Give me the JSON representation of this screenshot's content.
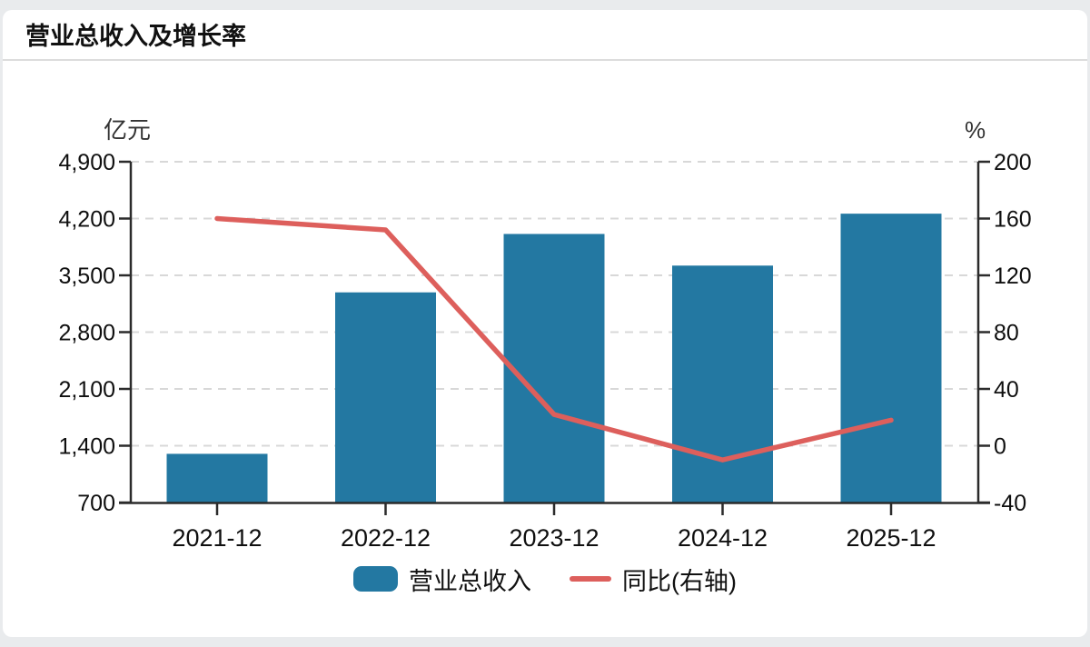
{
  "page": {
    "title": "营业总收入及增长率"
  },
  "axes": {
    "left_unit": "亿元",
    "right_unit": "%",
    "left_ticks": [
      "4,900",
      "4,200",
      "3,500",
      "2,800",
      "2,100",
      "1,400",
      "700"
    ],
    "right_ticks": [
      "200",
      "160",
      "120",
      "80",
      "40",
      "0",
      "-40"
    ]
  },
  "legend": {
    "items": [
      {
        "label": "营业总收入",
        "type": "bar",
        "color": "#2378a2"
      },
      {
        "label": "同比(右轴)",
        "type": "line",
        "color": "#dd5f5c"
      }
    ]
  },
  "colors": {
    "bar": "#2378a2",
    "line": "#dd5f5c",
    "grid": "#d8d8d8",
    "axis": "#2b2b2b",
    "text": "#0f0f0f",
    "page_background": "#e9ebed",
    "card_background": "#ffffff"
  },
  "chart_data": {
    "type": "bar",
    "subtype": "dual-axis bar+line combo",
    "title": "营业总收入及增长率",
    "categories": [
      "2021-12",
      "2022-12",
      "2023-12",
      "2024-12",
      "2025-12"
    ],
    "series": [
      {
        "name": "营业总收入",
        "type": "bar",
        "axis": "left",
        "unit": "亿元",
        "color": "#2378a2",
        "values": [
          1300,
          3290,
          4010,
          3620,
          4260
        ]
      },
      {
        "name": "同比(右轴)",
        "type": "line",
        "axis": "right",
        "unit": "%",
        "color": "#dd5f5c",
        "values": [
          160,
          152,
          22,
          -10,
          18
        ]
      }
    ],
    "left_axis": {
      "label": "亿元",
      "min": 700,
      "max": 4900,
      "tick_step": 700
    },
    "right_axis": {
      "label": "%",
      "min": -40,
      "max": 200,
      "tick_step": 40
    },
    "grid": "dashed horizontal gridlines at each tick",
    "legend_position": "bottom"
  }
}
